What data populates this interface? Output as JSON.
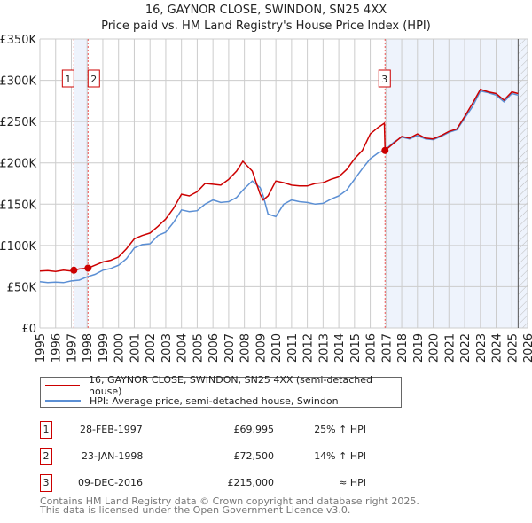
{
  "chart_data": {
    "type": "line",
    "title": "16, GAYNOR CLOSE, SWINDON, SN25 4XX",
    "subtitle": "Price paid vs. HM Land Registry's House Price Index (HPI)",
    "xlim": [
      1995,
      2026
    ],
    "ylim": [
      0,
      350000
    ],
    "x_ticks": [
      "1995",
      "1996",
      "1997",
      "1998",
      "1999",
      "2000",
      "2001",
      "2002",
      "2003",
      "2004",
      "2005",
      "2006",
      "2007",
      "2008",
      "2009",
      "2010",
      "2011",
      "2012",
      "2013",
      "2014",
      "2015",
      "2016",
      "2017",
      "2018",
      "2019",
      "2020",
      "2021",
      "2022",
      "2023",
      "2024",
      "2025",
      "2026"
    ],
    "y_ticks": [
      {
        "v": 0,
        "label": "£0"
      },
      {
        "v": 50000,
        "label": "£50K"
      },
      {
        "v": 100000,
        "label": "£100K"
      },
      {
        "v": 150000,
        "label": "£150K"
      },
      {
        "v": 200000,
        "label": "£200K"
      },
      {
        "v": 250000,
        "label": "£250K"
      },
      {
        "v": 300000,
        "label": "£300K"
      },
      {
        "v": 350000,
        "label": "£350K"
      }
    ],
    "grid": true,
    "series": [
      {
        "name": "16, GAYNOR CLOSE, SWINDON, SN25 4XX (semi-detached house)",
        "color": "#cc0000",
        "x": [
          1995,
          1995.5,
          1996,
          1996.5,
          1997,
          1997.16,
          1997.5,
          1998.06,
          1998.5,
          1999,
          1999.5,
          2000,
          2000.5,
          2001,
          2001.5,
          2002,
          2002.5,
          2003,
          2003.5,
          2004,
          2004.5,
          2005,
          2005.5,
          2006,
          2006.5,
          2007,
          2007.5,
          2007.9,
          2008.5,
          2009,
          2009.2,
          2009.5,
          2010,
          2010.5,
          2011,
          2011.5,
          2012,
          2012.5,
          2013,
          2013.5,
          2014,
          2014.5,
          2015,
          2015.5,
          2016,
          2016.5,
          2016.9,
          2016.94,
          2017.5,
          2018,
          2018.5,
          2019,
          2019.5,
          2020,
          2020.5,
          2021,
          2021.5,
          2022,
          2022.5,
          2023,
          2023.5,
          2024,
          2024.5,
          2025,
          2025.4
        ],
        "y": [
          69000,
          69500,
          68500,
          70000,
          69000,
          69995,
          71500,
          72500,
          76000,
          80000,
          82000,
          86000,
          96000,
          108000,
          112000,
          115000,
          123000,
          132000,
          145000,
          162000,
          160000,
          165000,
          175000,
          174000,
          173000,
          180000,
          190000,
          202000,
          190000,
          162000,
          155000,
          160000,
          178000,
          176000,
          173000,
          172000,
          172000,
          175000,
          176000,
          180000,
          183000,
          192000,
          205000,
          215000,
          235000,
          243000,
          248000,
          215000,
          224000,
          232000,
          230000,
          235000,
          230000,
          229000,
          233000,
          238000,
          241000,
          256000,
          272000,
          289000,
          286000,
          284000,
          276000,
          286000,
          284000
        ]
      },
      {
        "name": "HPI: Average price, semi-detached house, Swindon",
        "color": "#5b8fd4",
        "x": [
          1995,
          1995.5,
          1996,
          1996.5,
          1997,
          1997.5,
          1998,
          1998.5,
          1999,
          1999.5,
          2000,
          2000.5,
          2001,
          2001.5,
          2002,
          2002.5,
          2003,
          2003.5,
          2004,
          2004.5,
          2005,
          2005.5,
          2006,
          2006.5,
          2007,
          2007.5,
          2007.9,
          2008.5,
          2009,
          2009.2,
          2009.5,
          2010,
          2010.5,
          2011,
          2011.5,
          2012,
          2012.5,
          2013,
          2013.5,
          2014,
          2014.5,
          2015,
          2015.5,
          2016,
          2016.5,
          2016.9,
          2017.5,
          2018,
          2018.5,
          2019,
          2019.5,
          2020,
          2020.5,
          2021,
          2021.5,
          2022,
          2022.5,
          2023,
          2023.5,
          2024,
          2024.5,
          2025,
          2025.4
        ],
        "y": [
          56000,
          55000,
          55500,
          55000,
          57000,
          58000,
          62000,
          65000,
          70000,
          72000,
          76000,
          84000,
          97000,
          101000,
          102000,
          112000,
          116000,
          128000,
          143000,
          141000,
          142000,
          150000,
          155000,
          152000,
          153000,
          158000,
          167000,
          178000,
          170000,
          160000,
          138000,
          135000,
          150000,
          155000,
          153000,
          152000,
          150000,
          151000,
          156000,
          160000,
          167000,
          180000,
          193000,
          205000,
          212000,
          215000,
          225000,
          231000,
          229000,
          233000,
          229000,
          228000,
          232000,
          237000,
          240000,
          254000,
          268000,
          287000,
          285000,
          282000,
          274000,
          284000,
          282000
        ]
      }
    ],
    "sales": [
      {
        "id": "1",
        "x": 1997.16,
        "y": 69995,
        "date": "28-FEB-1997",
        "price": "£69,995",
        "hpi_note": "25% ↑ HPI"
      },
      {
        "id": "2",
        "x": 1998.06,
        "y": 72500,
        "date": "23-JAN-1998",
        "price": "£72,500",
        "hpi_note": "14% ↑ HPI"
      },
      {
        "id": "3",
        "x": 2016.94,
        "y": 215000,
        "date": "09-DEC-2016",
        "price": "£215,000",
        "hpi_note": "≈ HPI"
      }
    ],
    "projection_start": 2025.4
  },
  "footer": {
    "line1": "Contains HM Land Registry data © Crown copyright and database right 2025.",
    "line2": "This data is licensed under the Open Government Licence v3.0."
  }
}
